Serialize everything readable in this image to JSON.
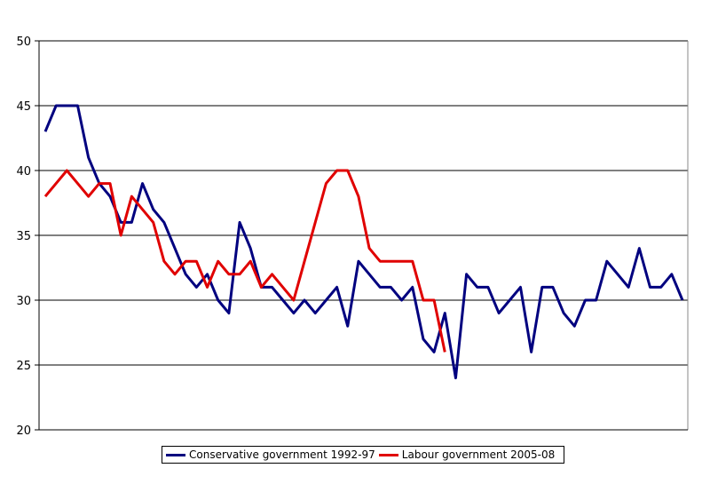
{
  "chart_data": {
    "type": "line",
    "title": "",
    "xlabel": "",
    "ylabel": "",
    "ylim": [
      20,
      50
    ],
    "yticks": [
      "20",
      "25",
      "30",
      "35",
      "40",
      "45",
      "50"
    ],
    "grid": true,
    "legend_position": "bottom",
    "series": [
      {
        "name": "Conservative government 1992-97",
        "color": "#00007f",
        "values": [
          43,
          45,
          45,
          45,
          41,
          39,
          38,
          36,
          36,
          39,
          37,
          36,
          34,
          32,
          31,
          32,
          30,
          29,
          36,
          34,
          31,
          31,
          30,
          29,
          30,
          29,
          30,
          31,
          28,
          33,
          32,
          31,
          31,
          30,
          31,
          27,
          26,
          29,
          24,
          32,
          31,
          31,
          29,
          30,
          31,
          26,
          31,
          31,
          29,
          28,
          30,
          30,
          33,
          32,
          31,
          34,
          31,
          31,
          32,
          30
        ]
      },
      {
        "name": "Labour government 2005-08",
        "color": "#e00000",
        "values": [
          38,
          39,
          40,
          39,
          38,
          39,
          39,
          35,
          38,
          37,
          36,
          33,
          32,
          33,
          33,
          31,
          33,
          32,
          32,
          33,
          31,
          32,
          31,
          30,
          33,
          36,
          39,
          40,
          40,
          38,
          34,
          33,
          33,
          33,
          33,
          30,
          30,
          26
        ]
      }
    ]
  }
}
